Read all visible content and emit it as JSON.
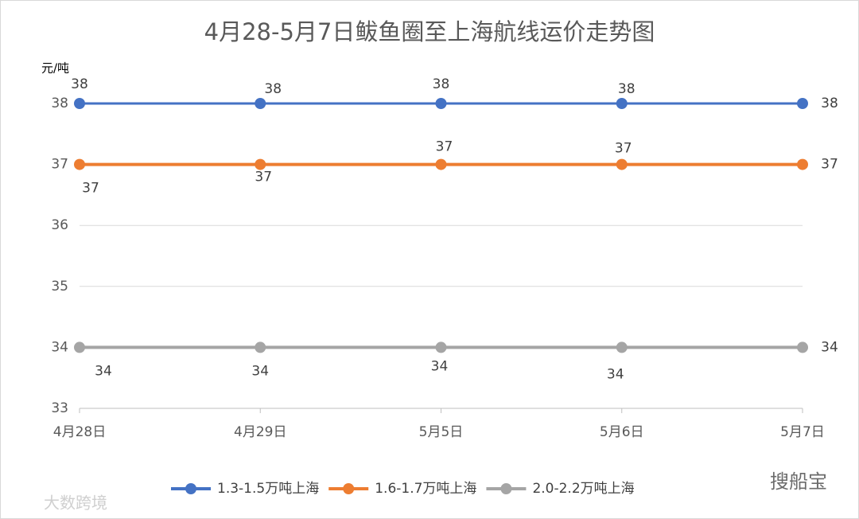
{
  "chart_data": {
    "type": "line",
    "title": "4月28-5月7日鲅鱼圈至上海航线运价走势图",
    "y_label": "元/吨",
    "categories": [
      "4月28日",
      "4月29日",
      "5月5日",
      "5月6日",
      "5月7日"
    ],
    "series": [
      {
        "name": "1.3-1.5万吨上海",
        "color": "#4472c4",
        "values": [
          38,
          38,
          38,
          38,
          38
        ]
      },
      {
        "name": "1.6-1.7万吨上海",
        "color": "#ed7d31",
        "values": [
          37,
          37,
          37,
          37,
          37
        ]
      },
      {
        "name": "2.0-2.2万吨上海",
        "color": "#a5a5a5",
        "values": [
          34,
          34,
          34,
          34,
          34
        ]
      }
    ],
    "ylim": [
      33,
      38
    ],
    "yticks": [
      33,
      34,
      35,
      36,
      37,
      38
    ],
    "grid": true,
    "legend": "bottom",
    "watermarks": [
      "大数跨境",
      "搜船宝"
    ]
  }
}
